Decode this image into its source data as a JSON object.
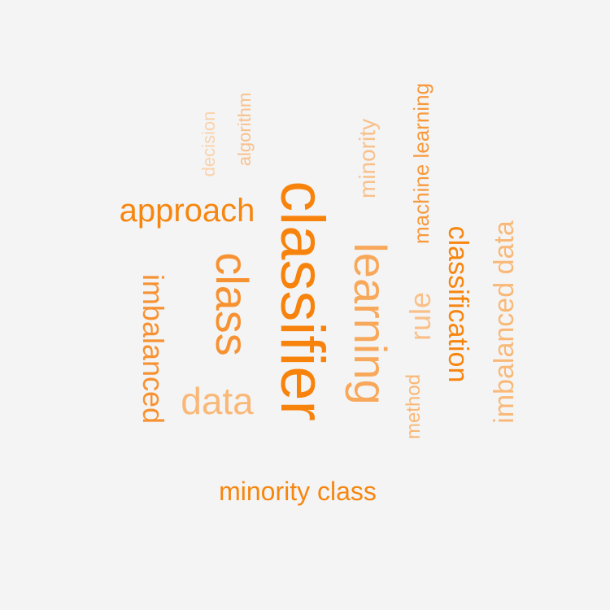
{
  "background": "#f4f4f4",
  "words": [
    {
      "id": "classifier",
      "text": "classifier",
      "color": "#f7830c",
      "size": 76,
      "rotate": 90
    },
    {
      "id": "learning",
      "text": "learning",
      "color": "#f8a85a",
      "size": 56,
      "rotate": 90
    },
    {
      "id": "class",
      "text": "class",
      "color": "#f79233",
      "size": 56,
      "rotate": 90
    },
    {
      "id": "approach",
      "text": "approach",
      "color": "#f7860f",
      "size": 40,
      "rotate": 0
    },
    {
      "id": "data",
      "text": "data",
      "color": "#f9b877",
      "size": 46,
      "rotate": 0
    },
    {
      "id": "minority-class",
      "text": "minority class",
      "color": "#f7860f",
      "size": 32,
      "rotate": 0
    },
    {
      "id": "imbalanced",
      "text": "imbalanced",
      "color": "#f79233",
      "size": 36,
      "rotate": 90
    },
    {
      "id": "imbalanced-data",
      "text": "imbalanced data",
      "color": "#f9b877",
      "size": 34,
      "rotate": -90
    },
    {
      "id": "classification",
      "text": "classification",
      "color": "#f7860f",
      "size": 34,
      "rotate": 90
    },
    {
      "id": "rule",
      "text": "rule",
      "color": "#f9c08a",
      "size": 36,
      "rotate": -90
    },
    {
      "id": "minority",
      "text": "minority",
      "color": "#f9c08a",
      "size": 28,
      "rotate": -90
    },
    {
      "id": "machine-learning",
      "text": "machine learning",
      "color": "#f79a3e",
      "size": 26,
      "rotate": -90
    },
    {
      "id": "method",
      "text": "method",
      "color": "#f9b877",
      "size": 24,
      "rotate": -90
    },
    {
      "id": "algorithm",
      "text": "algorithm",
      "color": "#f9c08a",
      "size": 22,
      "rotate": -90
    },
    {
      "id": "decision",
      "text": "decision",
      "color": "#fad2aa",
      "size": 22,
      "rotate": -90
    }
  ]
}
